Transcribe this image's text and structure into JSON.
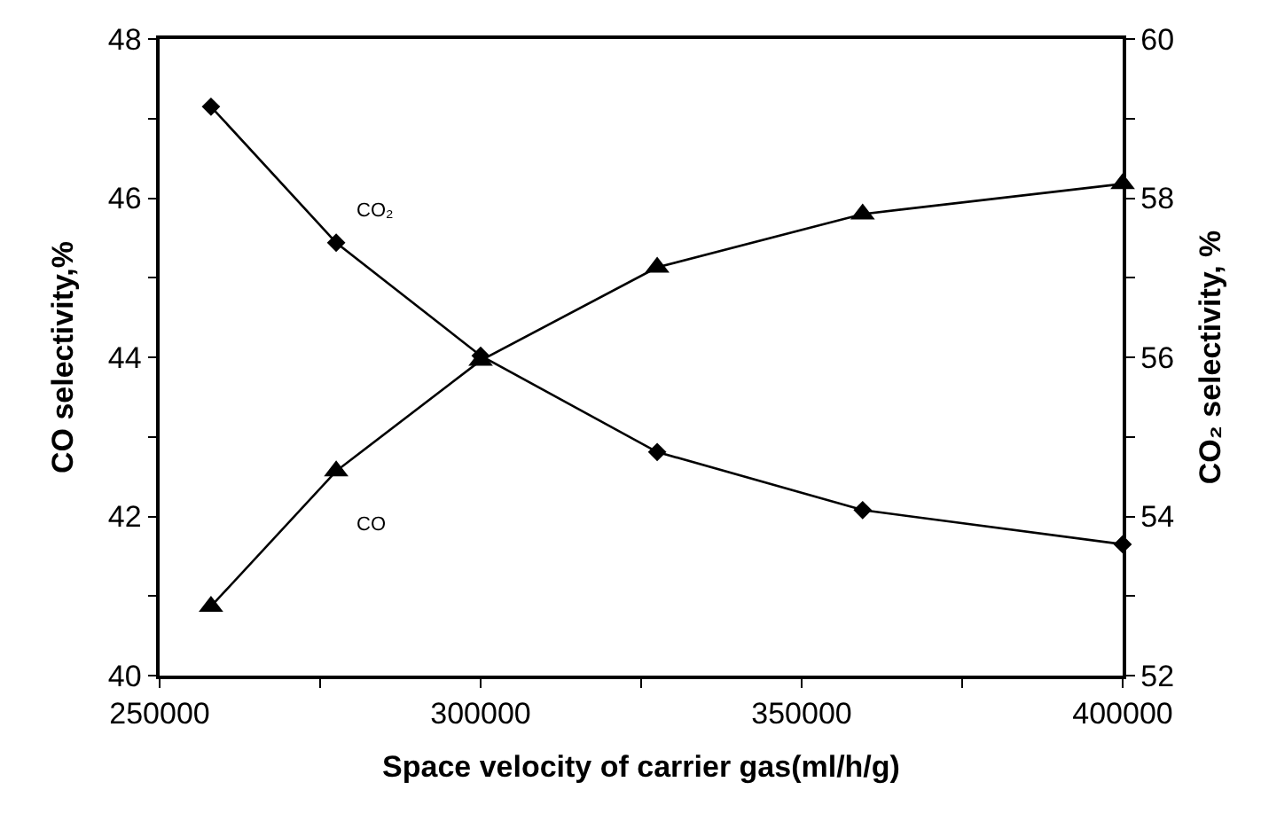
{
  "chart_data": {
    "type": "line",
    "xlabel": "Space velocity of carrier gas(ml/h/g)",
    "ylabel": "CO selectivity,%",
    "y2label": "CO₂ selectivity, %",
    "x": [
      258000,
      277500,
      300000,
      327500,
      359500,
      400000
    ],
    "series": [
      {
        "name": "CO",
        "color": "#000000",
        "marker": "triangle",
        "values": [
          40.87,
          42.57,
          43.96,
          45.13,
          45.8,
          46.18
        ]
      },
      {
        "name": "CO₂",
        "color": "#000000",
        "marker": "diamond",
        "axis": "y2",
        "values": [
          59.15,
          57.44,
          56.02,
          54.81,
          54.08,
          53.65
        ]
      }
    ],
    "xlim": [
      250000,
      400000
    ],
    "xticks": [
      250000,
      {
        "value": 275000,
        "label": null
      },
      300000,
      {
        "value": 325000,
        "label": null
      },
      350000,
      {
        "value": 375000,
        "label": null
      },
      400000
    ],
    "ylim": [
      40,
      48
    ],
    "yticks": [
      40,
      {
        "value": 41,
        "label": null
      },
      42,
      {
        "value": 43,
        "label": null
      },
      44,
      {
        "value": 45,
        "label": null
      },
      46,
      {
        "value": 47,
        "label": null
      },
      48
    ],
    "y2lim": [
      52,
      60
    ],
    "y2ticks": [
      52,
      {
        "value": 53,
        "label": null
      },
      54,
      {
        "value": 55,
        "label": null
      },
      56,
      {
        "value": 57,
        "label": null
      },
      58,
      {
        "value": 59,
        "label": null
      },
      60
    ],
    "legend": false,
    "line_style": "solid"
  }
}
